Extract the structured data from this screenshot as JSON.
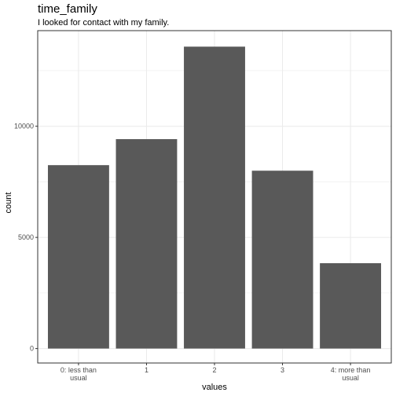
{
  "chart_data": {
    "type": "bar",
    "title": "time_family",
    "subtitle": "I looked for contact with my family.",
    "xlabel": "values",
    "ylabel": "count",
    "categories": [
      [
        "0: less than",
        "usual"
      ],
      [
        "1"
      ],
      [
        "2"
      ],
      [
        "3"
      ],
      [
        "4: more than",
        "usual"
      ]
    ],
    "values": [
      8250,
      9420,
      13580,
      8000,
      3840
    ],
    "ylim": [
      -650,
      14300
    ],
    "yticks": [
      0,
      5000,
      10000
    ],
    "grid": true,
    "colors": {
      "bar": "#595959",
      "grid": "#ebebeb",
      "panel_border": "#333333"
    }
  }
}
